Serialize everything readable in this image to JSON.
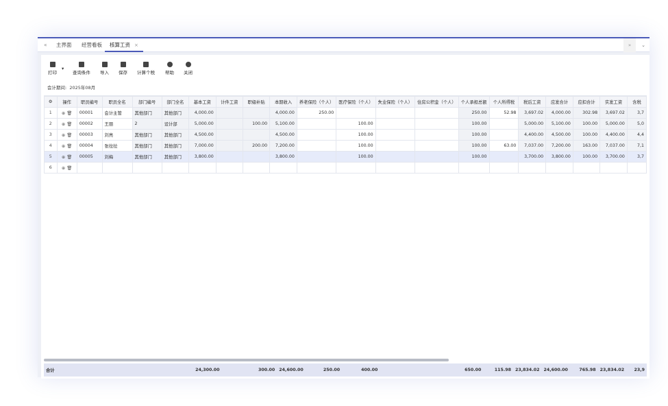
{
  "tabs": {
    "back_icon": "double-chevron-left",
    "items": [
      {
        "label": "主界面"
      },
      {
        "label": "经营看板"
      },
      {
        "label": "核算工资",
        "active": true
      }
    ],
    "close": "×",
    "forward_icon": "double-chevron-right",
    "menu_icon": "chevron-down"
  },
  "toolbar": {
    "print": "打印",
    "query": "查询条件",
    "import": "导入",
    "save": "保存",
    "calc_tax": "计算个税",
    "help": "帮助",
    "close": "关闭"
  },
  "period": {
    "label": "会计期间:",
    "value": "2025年08月"
  },
  "columns": [
    "操作",
    "职员编号",
    "职员全名",
    "部门编号",
    "部门全名",
    "基本工资",
    "计件工资",
    "职级补贴",
    "本期收入",
    "养老保险（个人）",
    "医疗保险（个人）",
    "失业保险（个人）",
    "住房公积金（个人）",
    "个人承担总额",
    "个人所得税",
    "税后工资",
    "应发合计",
    "应扣合计",
    "实发工资",
    "含税"
  ],
  "rows": [
    [
      "1",
      "00001",
      "会计主管",
      "其他部门",
      "其他部门",
      "4,000.00",
      "",
      "",
      "4,000.00",
      "250.00",
      "",
      "",
      "",
      "250.00",
      "52.98",
      "3,697.02",
      "4,000.00",
      "302.98",
      "3,697.02",
      "3,7"
    ],
    [
      "2",
      "00002",
      "王丽",
      "2",
      "设计部",
      "5,000.00",
      "",
      "100.00",
      "5,100.00",
      "",
      "100.00",
      "",
      "",
      "100.00",
      "",
      "5,000.00",
      "5,100.00",
      "100.00",
      "5,000.00",
      "5,0"
    ],
    [
      "3",
      "00003",
      "刘亮",
      "其他部门",
      "其他部门",
      "4,500.00",
      "",
      "",
      "4,500.00",
      "",
      "100.00",
      "",
      "",
      "100.00",
      "",
      "4,400.00",
      "4,500.00",
      "100.00",
      "4,400.00",
      "4,4"
    ],
    [
      "4",
      "00004",
      "张拉拉",
      "其他部门",
      "其他部门",
      "7,000.00",
      "",
      "200.00",
      "7,200.00",
      "",
      "100.00",
      "",
      "",
      "100.00",
      "63.00",
      "7,037.00",
      "7,200.00",
      "163.00",
      "7,037.00",
      "7,1"
    ],
    [
      "5",
      "00005",
      "刘梅",
      "其他部门",
      "其他部门",
      "3,800.00",
      "",
      "",
      "3,800.00",
      "",
      "100.00",
      "",
      "",
      "100.00",
      "",
      "3,700.00",
      "3,800.00",
      "100.00",
      "3,700.00",
      "3,7"
    ],
    [
      "6",
      "",
      "",
      "",
      "",
      "",
      "",
      "",
      "",
      "",
      "",
      "",
      "",
      "",
      "",
      "",
      "",
      "",
      "",
      ""
    ]
  ],
  "selected_row": 5,
  "totals": {
    "label": "合计",
    "values": [
      "",
      "",
      "",
      "",
      "",
      "24,300.00",
      "",
      "300.00",
      "24,600.00",
      "250.00",
      "400.00",
      "",
      "",
      "650.00",
      "115.98",
      "23,834.02",
      "24,600.00",
      "765.98",
      "23,834.02",
      "23,9"
    ]
  }
}
